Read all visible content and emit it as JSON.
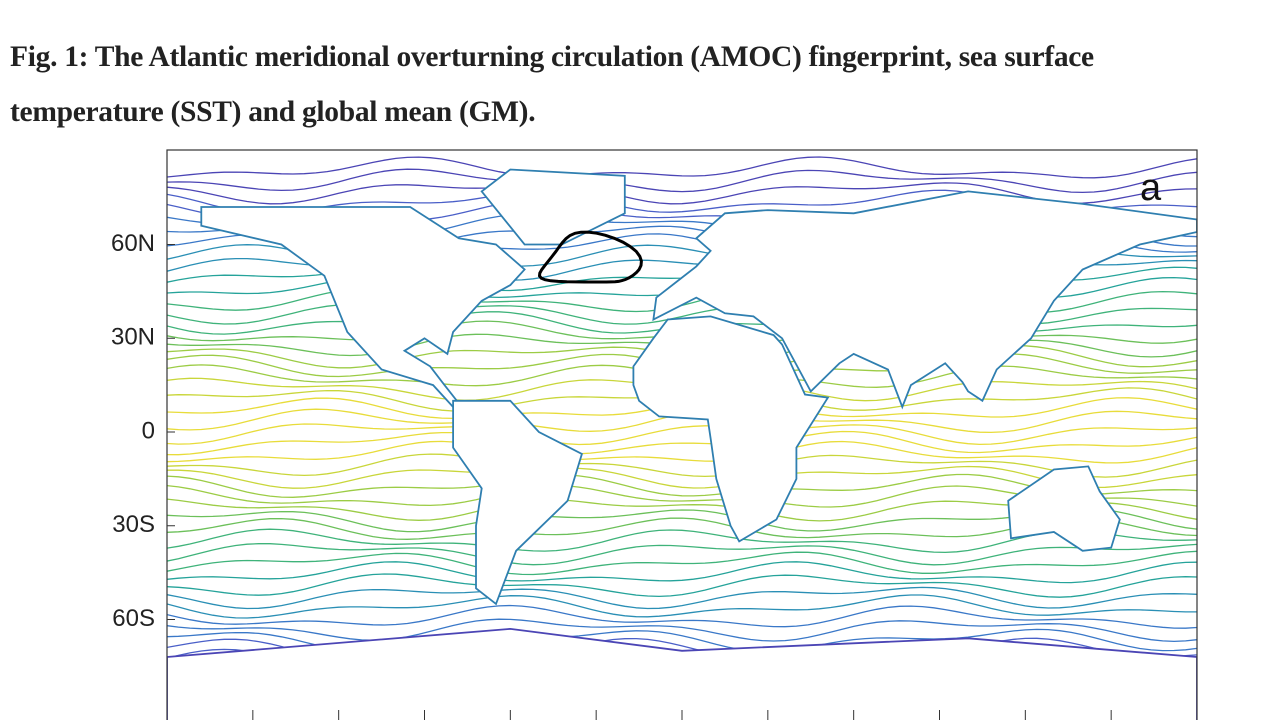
{
  "figure": {
    "caption": "Fig. 1: The Atlantic meridional overturning circulation (AMOC) fingerprint, sea surface temperature (SST) and global mean (GM).",
    "panel_label": "a",
    "y_tick_labels": [
      "60N",
      "30N",
      "0",
      "30S",
      "60S"
    ]
  }
}
